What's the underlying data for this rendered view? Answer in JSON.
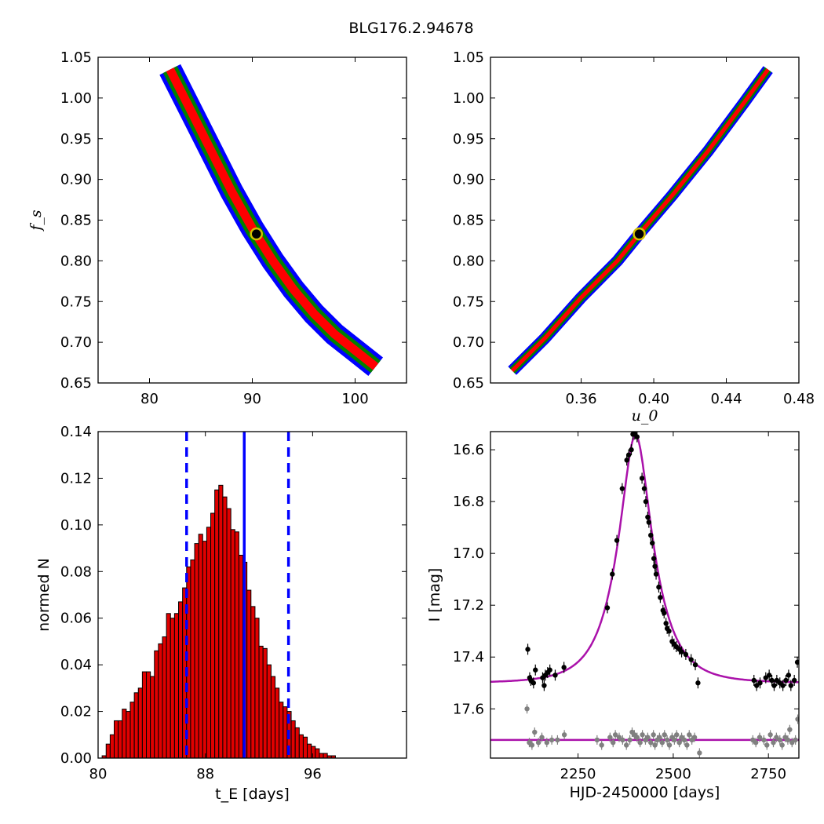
{
  "figure": {
    "title": "BLG176.2.94678"
  },
  "chart_data": [
    {
      "id": "tE_fs",
      "type": "heatmap",
      "description_levels": [
        "blue",
        "green",
        "red"
      ],
      "xlabel": "",
      "ylabel": "f_s",
      "xlim": [
        75,
        105
      ],
      "ylim": [
        0.65,
        1.05
      ],
      "xticks": [
        80,
        90,
        100
      ],
      "yticks": [
        0.65,
        0.7,
        0.75,
        0.8,
        0.85,
        0.9,
        0.95,
        1.0,
        1.05
      ],
      "ridge": [
        [
          82.0,
          1.035
        ],
        [
          84.0,
          0.985
        ],
        [
          86.0,
          0.935
        ],
        [
          88.0,
          0.885
        ],
        [
          90.0,
          0.84
        ],
        [
          92.0,
          0.8
        ],
        [
          94.0,
          0.765
        ],
        [
          96.0,
          0.735
        ],
        [
          98.0,
          0.71
        ],
        [
          100.0,
          0.69
        ],
        [
          102.0,
          0.67
        ]
      ],
      "best_fit": [
        90.4,
        0.833
      ],
      "colors": {
        "outer": "#0000ff",
        "middle": "#008000",
        "inner": "#ff0000",
        "marker_fill": "#000000",
        "marker_ring": "#d4c000"
      }
    },
    {
      "id": "u0_fs",
      "type": "heatmap",
      "xlabel": "u_0",
      "ylabel": "",
      "xlim": [
        0.31,
        0.48
      ],
      "ylim": [
        0.65,
        1.05
      ],
      "xticks": [
        0.36,
        0.4,
        0.44,
        0.48
      ],
      "yticks": [
        0.65,
        0.7,
        0.75,
        0.8,
        0.85,
        0.9,
        0.95,
        1.0,
        1.05
      ],
      "ridge": [
        [
          0.322,
          0.665
        ],
        [
          0.34,
          0.705
        ],
        [
          0.36,
          0.755
        ],
        [
          0.38,
          0.8
        ],
        [
          0.392,
          0.833
        ],
        [
          0.41,
          0.88
        ],
        [
          0.43,
          0.935
        ],
        [
          0.45,
          0.995
        ],
        [
          0.463,
          1.035
        ]
      ],
      "best_fit": [
        0.392,
        0.833
      ],
      "colors": {
        "outer": "#0000ff",
        "middle": "#008000",
        "inner": "#ff0000",
        "marker_fill": "#000000",
        "marker_ring": "#d4c000"
      }
    },
    {
      "id": "tE_hist",
      "type": "bar",
      "xlabel": "t_E [days]",
      "ylabel": "normed N",
      "xlim": [
        80,
        103
      ],
      "ylim": [
        0,
        0.14
      ],
      "xticks": [
        80,
        88,
        96
      ],
      "yticks": [
        0.0,
        0.02,
        0.04,
        0.06,
        0.08,
        0.1,
        0.12,
        0.14
      ],
      "bin_start": 80.3,
      "bin_width": 0.3,
      "values": [
        0.001,
        0.006,
        0.01,
        0.016,
        0.016,
        0.021,
        0.02,
        0.024,
        0.028,
        0.03,
        0.037,
        0.037,
        0.035,
        0.046,
        0.049,
        0.052,
        0.062,
        0.06,
        0.062,
        0.067,
        0.073,
        0.082,
        0.085,
        0.092,
        0.096,
        0.093,
        0.099,
        0.105,
        0.115,
        0.117,
        0.112,
        0.107,
        0.098,
        0.097,
        0.087,
        0.084,
        0.072,
        0.065,
        0.06,
        0.048,
        0.047,
        0.04,
        0.035,
        0.03,
        0.024,
        0.022,
        0.02,
        0.016,
        0.013,
        0.01,
        0.009,
        0.006,
        0.005,
        0.004,
        0.002,
        0.002,
        0.001,
        0.001,
        0.0,
        0.0
      ],
      "median": 90.9,
      "lower": 86.6,
      "upper": 94.2,
      "colors": {
        "bar": "#e00000",
        "edge": "#000000",
        "lines": "#0000ff"
      }
    },
    {
      "id": "lightcurve",
      "type": "scatter",
      "xlabel": "HJD-2450000 [days]",
      "ylabel": "I [mag]",
      "xlim": [
        2020,
        2830
      ],
      "ylim": [
        17.79,
        16.53
      ],
      "xticks": [
        2250,
        2500,
        2750
      ],
      "yticks": [
        16.6,
        16.8,
        17.0,
        17.2,
        17.4,
        17.6
      ],
      "model": {
        "t0": 2401,
        "tE": 90.4,
        "u0": 0.392,
        "fs": 0.833,
        "base": 17.5
      },
      "residual_level": 17.72,
      "points": [
        [
          2118,
          17.37
        ],
        [
          2123,
          17.48
        ],
        [
          2126,
          17.49
        ],
        [
          2133,
          17.5
        ],
        [
          2138,
          17.45
        ],
        [
          2157,
          17.48
        ],
        [
          2161,
          17.51
        ],
        [
          2164,
          17.47
        ],
        [
          2170,
          17.46
        ],
        [
          2176,
          17.45
        ],
        [
          2190,
          17.47
        ],
        [
          2213,
          17.44
        ],
        [
          2327,
          17.21
        ],
        [
          2340,
          17.08
        ],
        [
          2352,
          16.95
        ],
        [
          2366,
          16.75
        ],
        [
          2378,
          16.64
        ],
        [
          2383,
          16.62
        ],
        [
          2390,
          16.6
        ],
        [
          2394,
          16.54
        ],
        [
          2399,
          16.54
        ],
        [
          2405,
          16.55
        ],
        [
          2418,
          16.71
        ],
        [
          2424,
          16.75
        ],
        [
          2428,
          16.8
        ],
        [
          2433,
          16.86
        ],
        [
          2436,
          16.88
        ],
        [
          2441,
          16.93
        ],
        [
          2445,
          16.96
        ],
        [
          2449,
          17.02
        ],
        [
          2452,
          17.05
        ],
        [
          2455,
          17.08
        ],
        [
          2462,
          17.13
        ],
        [
          2466,
          17.17
        ],
        [
          2473,
          17.22
        ],
        [
          2476,
          17.23
        ],
        [
          2481,
          17.27
        ],
        [
          2484,
          17.29
        ],
        [
          2489,
          17.3
        ],
        [
          2497,
          17.34
        ],
        [
          2502,
          17.35
        ],
        [
          2508,
          17.36
        ],
        [
          2516,
          17.37
        ],
        [
          2522,
          17.38
        ],
        [
          2533,
          17.39
        ],
        [
          2547,
          17.41
        ],
        [
          2558,
          17.43
        ],
        [
          2565,
          17.5
        ],
        [
          2712,
          17.49
        ],
        [
          2719,
          17.51
        ],
        [
          2728,
          17.5
        ],
        [
          2743,
          17.48
        ],
        [
          2752,
          17.47
        ],
        [
          2759,
          17.49
        ],
        [
          2765,
          17.51
        ],
        [
          2772,
          17.49
        ],
        [
          2780,
          17.5
        ],
        [
          2788,
          17.51
        ],
        [
          2796,
          17.49
        ],
        [
          2803,
          17.47
        ],
        [
          2809,
          17.51
        ],
        [
          2818,
          17.49
        ],
        [
          2826,
          17.42
        ]
      ],
      "residual_points": [
        [
          2116,
          17.6
        ],
        [
          2122,
          17.73
        ],
        [
          2129,
          17.74
        ],
        [
          2136,
          17.69
        ],
        [
          2146,
          17.73
        ],
        [
          2155,
          17.71
        ],
        [
          2168,
          17.73
        ],
        [
          2181,
          17.72
        ],
        [
          2196,
          17.72
        ],
        [
          2214,
          17.7
        ],
        [
          2300,
          17.72
        ],
        [
          2312,
          17.74
        ],
        [
          2334,
          17.71
        ],
        [
          2342,
          17.73
        ],
        [
          2348,
          17.7
        ],
        [
          2358,
          17.71
        ],
        [
          2367,
          17.72
        ],
        [
          2377,
          17.74
        ],
        [
          2386,
          17.72
        ],
        [
          2392,
          17.69
        ],
        [
          2398,
          17.7
        ],
        [
          2405,
          17.71
        ],
        [
          2413,
          17.73
        ],
        [
          2419,
          17.7
        ],
        [
          2427,
          17.72
        ],
        [
          2433,
          17.71
        ],
        [
          2441,
          17.73
        ],
        [
          2448,
          17.7
        ],
        [
          2452,
          17.74
        ],
        [
          2458,
          17.72
        ],
        [
          2464,
          17.71
        ],
        [
          2471,
          17.73
        ],
        [
          2477,
          17.7
        ],
        [
          2484,
          17.72
        ],
        [
          2490,
          17.74
        ],
        [
          2497,
          17.71
        ],
        [
          2503,
          17.72
        ],
        [
          2509,
          17.7
        ],
        [
          2516,
          17.73
        ],
        [
          2522,
          17.71
        ],
        [
          2529,
          17.72
        ],
        [
          2536,
          17.74
        ],
        [
          2542,
          17.7
        ],
        [
          2549,
          17.72
        ],
        [
          2556,
          17.71
        ],
        [
          2569,
          17.77
        ],
        [
          2709,
          17.72
        ],
        [
          2717,
          17.73
        ],
        [
          2727,
          17.71
        ],
        [
          2738,
          17.72
        ],
        [
          2746,
          17.74
        ],
        [
          2755,
          17.7
        ],
        [
          2763,
          17.73
        ],
        [
          2771,
          17.71
        ],
        [
          2780,
          17.72
        ],
        [
          2786,
          17.74
        ],
        [
          2794,
          17.71
        ],
        [
          2801,
          17.72
        ],
        [
          2806,
          17.68
        ],
        [
          2812,
          17.73
        ],
        [
          2821,
          17.72
        ],
        [
          2827,
          17.64
        ]
      ],
      "colors": {
        "data": "#000000",
        "residual": "#808080",
        "model": "#aa11aa"
      }
    }
  ]
}
